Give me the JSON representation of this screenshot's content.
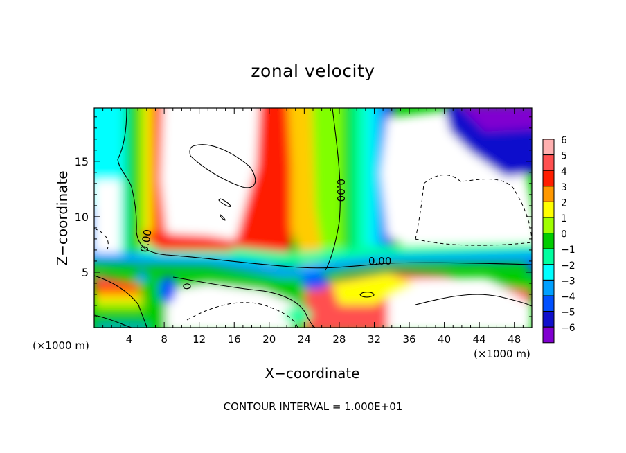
{
  "chart_data": {
    "type": "heatmap",
    "title": "zonal velocity",
    "xlabel": "X−coordinate",
    "ylabel": "Z−coordinate",
    "x_unit_label_left": "(×1000 m)",
    "x_unit_label_right": "(×1000 m)",
    "footer": "CONTOUR INTERVAL = 1.000E+01",
    "xlim": [
      0,
      50
    ],
    "ylim": [
      0,
      19.8
    ],
    "x_ticks": [
      4,
      8,
      12,
      16,
      20,
      24,
      28,
      32,
      36,
      40,
      44,
      48
    ],
    "y_ticks": [
      5,
      10,
      15
    ],
    "colorbar": {
      "levels": [
        6,
        5,
        4,
        3,
        2,
        1,
        0,
        -1,
        -2,
        -3,
        -4,
        -5,
        -6
      ],
      "level_labels": [
        "6",
        "5",
        "4",
        "3",
        "2",
        "1",
        "0",
        "−1",
        "−2",
        "−3",
        "−4",
        "−5",
        "−6"
      ],
      "colors": [
        "#ffb0b0",
        "#ff5050",
        "#ff1e00",
        "#ff9800",
        "#ffff00",
        "#a0ff00",
        "#00cc00",
        "#00ffa0",
        "#00ffff",
        "#00a0ff",
        "#0050ff",
        "#1010cc",
        "#8000d0"
      ],
      "above_max": "white",
      "below_min": "white"
    },
    "contour_labels": [
      "0.00",
      "0.00",
      "0.00"
    ],
    "grid": false
  }
}
